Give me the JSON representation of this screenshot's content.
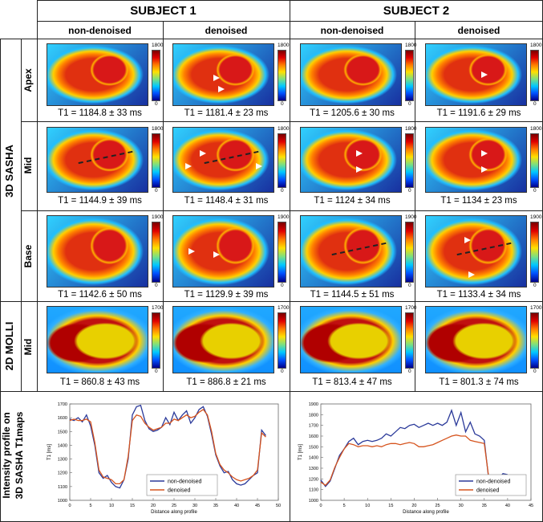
{
  "headers": {
    "subject1": "SUBJECT 1",
    "subject2": "SUBJECT 2",
    "col_non": "non-denoised",
    "col_den": "denoised"
  },
  "rows": {
    "group_3d": "3D SASHA",
    "group_2d": "2D MOLLI",
    "apex": "Apex",
    "mid": "Mid",
    "base": "Base",
    "mid2": "Mid",
    "profile": "Intensity profile on",
    "profile2": "3D SASHA T1maps"
  },
  "colorbar": {
    "max_1800": "1800",
    "max_1900": "1900",
    "max_1700": "1700",
    "min": "0"
  },
  "captions": {
    "apex": [
      "T1 = 1184.8 ± 33 ms",
      "T1 = 1181.4 ± 23 ms",
      "T1 = 1205.6 ± 30 ms",
      "T1 = 1191.6 ± 29 ms"
    ],
    "mid": [
      "T1 = 1144.9 ± 39 ms",
      "T1 = 1148.4 ± 31 ms",
      "T1 = 1124 ± 34 ms",
      "T1 = 1134 ± 23 ms"
    ],
    "base": [
      "T1 = 1142.6 ± 50 ms",
      "T1 = 1129.9 ± 39 ms",
      "T1 = 1144.5 ± 51 ms",
      "T1 = 1133.4 ± 34 ms"
    ],
    "molli": [
      "T1 = 860.8 ± 43 ms",
      "T1 = 886.8 ± 21 ms",
      "T1 = 813.4 ± 47 ms",
      "T1 = 801.3 ± 74 ms"
    ]
  },
  "colors": {
    "non_denoised": "#2b3a9a",
    "denoised": "#d6541e"
  },
  "chart_data": [
    {
      "type": "line",
      "title": "",
      "xlabel": "Distance along profile",
      "ylabel": "T1 [ms]",
      "xlim": [
        0,
        50
      ],
      "ylim": [
        1000,
        1700
      ],
      "xticks": [
        "0",
        "5",
        "10",
        "15",
        "20",
        "25",
        "30",
        "35",
        "40",
        "45",
        "50"
      ],
      "yticks": [
        "1000",
        "1100",
        "1200",
        "1300",
        "1400",
        "1500",
        "1600",
        "1700"
      ],
      "series": [
        {
          "name": "non-denoised",
          "x": [
            0,
            1,
            2,
            3,
            4,
            5,
            6,
            7,
            8,
            9,
            10,
            11,
            12,
            13,
            14,
            15,
            16,
            17,
            18,
            19,
            20,
            21,
            22,
            23,
            24,
            25,
            26,
            27,
            28,
            29,
            30,
            31,
            32,
            33,
            34,
            35,
            36,
            37,
            38,
            39,
            40,
            41,
            42,
            43,
            44,
            45,
            46,
            47
          ],
          "values": [
            1590,
            1580,
            1600,
            1570,
            1620,
            1540,
            1400,
            1200,
            1160,
            1180,
            1130,
            1100,
            1090,
            1150,
            1300,
            1620,
            1680,
            1690,
            1580,
            1520,
            1500,
            1510,
            1530,
            1600,
            1550,
            1640,
            1580,
            1620,
            1650,
            1560,
            1600,
            1660,
            1680,
            1610,
            1480,
            1330,
            1250,
            1200,
            1210,
            1150,
            1120,
            1110,
            1120,
            1150,
            1180,
            1200,
            1510,
            1470
          ]
        },
        {
          "name": "denoised",
          "x": [
            0,
            1,
            2,
            3,
            4,
            5,
            6,
            7,
            8,
            9,
            10,
            11,
            12,
            13,
            14,
            15,
            16,
            17,
            18,
            19,
            20,
            21,
            22,
            23,
            24,
            25,
            26,
            27,
            28,
            29,
            30,
            31,
            32,
            33,
            34,
            35,
            36,
            37,
            38,
            39,
            40,
            41,
            42,
            43,
            44,
            45,
            46,
            47
          ],
          "values": [
            1580,
            1590,
            1580,
            1580,
            1590,
            1570,
            1420,
            1220,
            1170,
            1160,
            1150,
            1120,
            1120,
            1150,
            1320,
            1580,
            1620,
            1610,
            1560,
            1530,
            1510,
            1520,
            1530,
            1560,
            1560,
            1590,
            1580,
            1600,
            1620,
            1600,
            1610,
            1640,
            1660,
            1620,
            1500,
            1340,
            1260,
            1220,
            1200,
            1170,
            1150,
            1140,
            1150,
            1160,
            1180,
            1220,
            1490,
            1460
          ]
        }
      ],
      "legend": "bottom-center"
    },
    {
      "type": "line",
      "title": "",
      "xlabel": "Distance along profile",
      "ylabel": "T1 [ms]",
      "xlim": [
        0,
        45
      ],
      "ylim": [
        1000,
        1900
      ],
      "xticks": [
        "0",
        "5",
        "10",
        "15",
        "20",
        "25",
        "30",
        "35",
        "40",
        "45"
      ],
      "yticks": [
        "1000",
        "1100",
        "1200",
        "1300",
        "1400",
        "1500",
        "1600",
        "1700",
        "1800",
        "1900"
      ],
      "series": [
        {
          "name": "non-denoised",
          "x": [
            0,
            1,
            2,
            3,
            4,
            5,
            6,
            7,
            8,
            9,
            10,
            11,
            12,
            13,
            14,
            15,
            16,
            17,
            18,
            19,
            20,
            21,
            22,
            23,
            24,
            25,
            26,
            27,
            28,
            29,
            30,
            31,
            32,
            33,
            34,
            35,
            36,
            37,
            38,
            39,
            40
          ],
          "values": [
            1190,
            1130,
            1180,
            1300,
            1420,
            1480,
            1550,
            1580,
            1520,
            1550,
            1560,
            1550,
            1560,
            1580,
            1620,
            1600,
            1640,
            1680,
            1670,
            1700,
            1710,
            1680,
            1700,
            1720,
            1700,
            1720,
            1700,
            1730,
            1840,
            1700,
            1820,
            1640,
            1730,
            1620,
            1600,
            1560,
            1180,
            1180,
            1200,
            1250,
            1240
          ]
        },
        {
          "name": "denoised",
          "x": [
            0,
            1,
            2,
            3,
            4,
            5,
            6,
            7,
            8,
            9,
            10,
            11,
            12,
            13,
            14,
            15,
            16,
            17,
            18,
            19,
            20,
            21,
            22,
            23,
            24,
            25,
            26,
            27,
            28,
            29,
            30,
            31,
            32,
            33,
            34,
            35,
            36,
            37,
            38,
            39,
            40
          ],
          "values": [
            1170,
            1140,
            1190,
            1310,
            1400,
            1480,
            1530,
            1520,
            1500,
            1510,
            1510,
            1500,
            1510,
            1500,
            1520,
            1530,
            1530,
            1520,
            1530,
            1540,
            1530,
            1500,
            1500,
            1510,
            1520,
            1540,
            1560,
            1580,
            1600,
            1610,
            1600,
            1600,
            1560,
            1550,
            1540,
            1530,
            1200,
            1200,
            1210,
            1210,
            1220
          ]
        }
      ],
      "legend": "bottom-right"
    }
  ]
}
